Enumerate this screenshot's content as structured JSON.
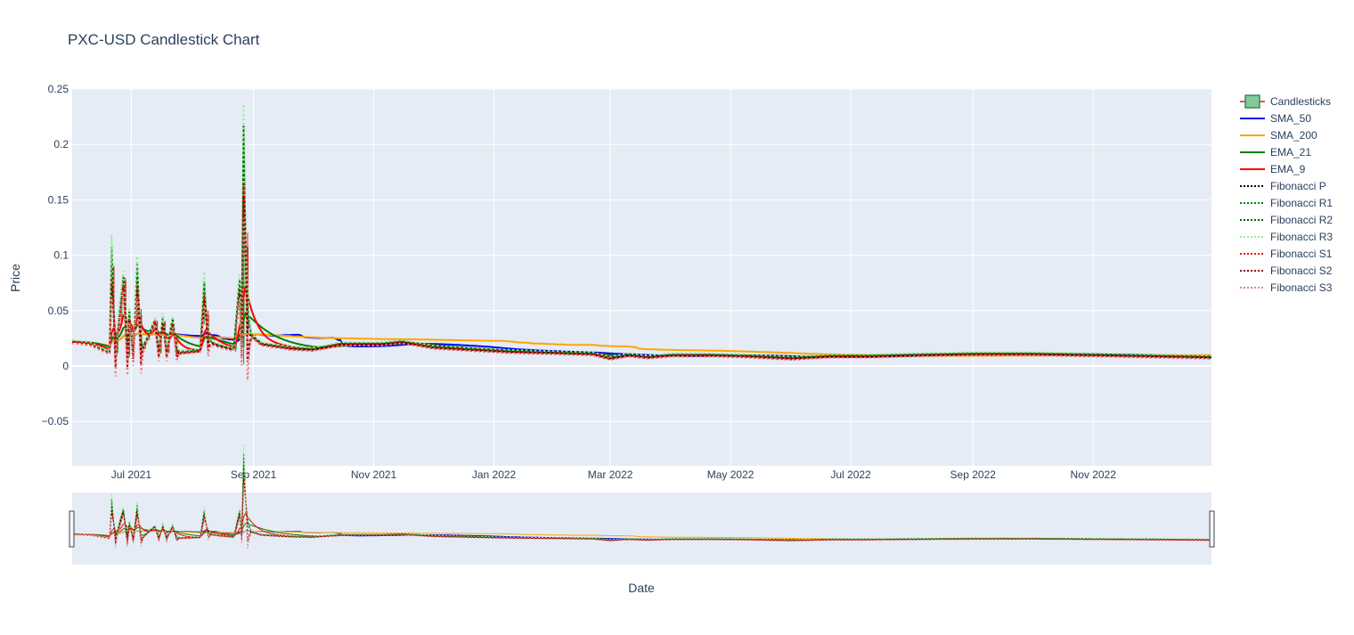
{
  "chart_data": {
    "type": "candlestick",
    "title": "PXC-USD Candlestick Chart",
    "xlabel": "Date",
    "ylabel": "Price",
    "x_range": [
      "2021-06-01",
      "2022-12-31"
    ],
    "ylim": [
      -0.09,
      0.25
    ],
    "y_ticks": [
      -0.05,
      0,
      0.05,
      0.1,
      0.15,
      0.2,
      0.25
    ],
    "y_tick_labels": [
      "−0.05",
      "0",
      "0.05",
      "0.1",
      "0.15",
      "0.2",
      "0.25"
    ],
    "x_ticks": [
      "2021-07-01",
      "2021-09-01",
      "2021-11-01",
      "2022-01-01",
      "2022-03-01",
      "2022-05-01",
      "2022-07-01",
      "2022-09-01",
      "2022-11-01"
    ],
    "x_tick_labels": [
      "Jul 2021",
      "Sep 2021",
      "Nov 2021",
      "Jan 2022",
      "Mar 2022",
      "May 2022",
      "Jul 2022",
      "Sep 2022",
      "Nov 2022"
    ],
    "grid": true,
    "legend_position": "right",
    "range_slider": true,
    "series": [
      {
        "name": "Candlesticks",
        "color": "#2ca02c",
        "style": "candle"
      },
      {
        "name": "SMA_50",
        "color": "#0000ff",
        "style": "solid"
      },
      {
        "name": "SMA_200",
        "color": "#ffa500",
        "style": "solid"
      },
      {
        "name": "EMA_21",
        "color": "#008000",
        "style": "solid"
      },
      {
        "name": "EMA_9",
        "color": "#ff0000",
        "style": "solid"
      },
      {
        "name": "Fibonacci P",
        "color": "#000000",
        "style": "dot"
      },
      {
        "name": "Fibonacci R1",
        "color": "#008000",
        "style": "dot"
      },
      {
        "name": "Fibonacci R2",
        "color": "#006400",
        "style": "dot"
      },
      {
        "name": "Fibonacci R3",
        "color": "#90ee90",
        "style": "dot"
      },
      {
        "name": "Fibonacci S1",
        "color": "#ff0000",
        "style": "dot"
      },
      {
        "name": "Fibonacci S2",
        "color": "#8b0000",
        "style": "dot"
      },
      {
        "name": "Fibonacci S3",
        "color": "#f08080",
        "style": "dot"
      }
    ],
    "price_points": [
      [
        "2021-06-01",
        0.022
      ],
      [
        "2021-06-10",
        0.02
      ],
      [
        "2021-06-20",
        0.012
      ],
      [
        "2021-06-21",
        0.09
      ],
      [
        "2021-06-23",
        0.012
      ],
      [
        "2021-06-27",
        0.077
      ],
      [
        "2021-06-29",
        0.01
      ],
      [
        "2021-06-30",
        0.046
      ],
      [
        "2021-07-02",
        0.01
      ],
      [
        "2021-07-04",
        0.08
      ],
      [
        "2021-07-06",
        0.012
      ],
      [
        "2021-07-13",
        0.04
      ],
      [
        "2021-07-15",
        0.012
      ],
      [
        "2021-07-17",
        0.04
      ],
      [
        "2021-07-19",
        0.012
      ],
      [
        "2021-07-22",
        0.04
      ],
      [
        "2021-07-24",
        0.012
      ],
      [
        "2021-08-05",
        0.014
      ],
      [
        "2021-08-07",
        0.07
      ],
      [
        "2021-08-09",
        0.022
      ],
      [
        "2021-08-15",
        0.018
      ],
      [
        "2021-08-22",
        0.015
      ],
      [
        "2021-08-25",
        0.072
      ],
      [
        "2021-08-26",
        0.017
      ],
      [
        "2021-08-27",
        0.185
      ],
      [
        "2021-08-29",
        0.03
      ],
      [
        "2021-09-05",
        0.02
      ],
      [
        "2021-09-20",
        0.016
      ],
      [
        "2021-10-01",
        0.015
      ],
      [
        "2021-10-15",
        0.02
      ],
      [
        "2021-11-05",
        0.02
      ],
      [
        "2021-11-15",
        0.022
      ],
      [
        "2021-12-01",
        0.017
      ],
      [
        "2021-12-20",
        0.015
      ],
      [
        "2022-01-10",
        0.013
      ],
      [
        "2022-02-01",
        0.012
      ],
      [
        "2022-02-20",
        0.011
      ],
      [
        "2022-03-01",
        0.007
      ],
      [
        "2022-03-10",
        0.01
      ],
      [
        "2022-03-20",
        0.008
      ],
      [
        "2022-04-01",
        0.01
      ],
      [
        "2022-04-20",
        0.01
      ],
      [
        "2022-05-10",
        0.009
      ],
      [
        "2022-06-01",
        0.007
      ],
      [
        "2022-06-20",
        0.009
      ],
      [
        "2022-07-10",
        0.009
      ],
      [
        "2022-08-01",
        0.01
      ],
      [
        "2022-09-01",
        0.011
      ],
      [
        "2022-10-01",
        0.011
      ],
      [
        "2022-11-01",
        0.01
      ],
      [
        "2022-12-31",
        0.008
      ]
    ]
  }
}
